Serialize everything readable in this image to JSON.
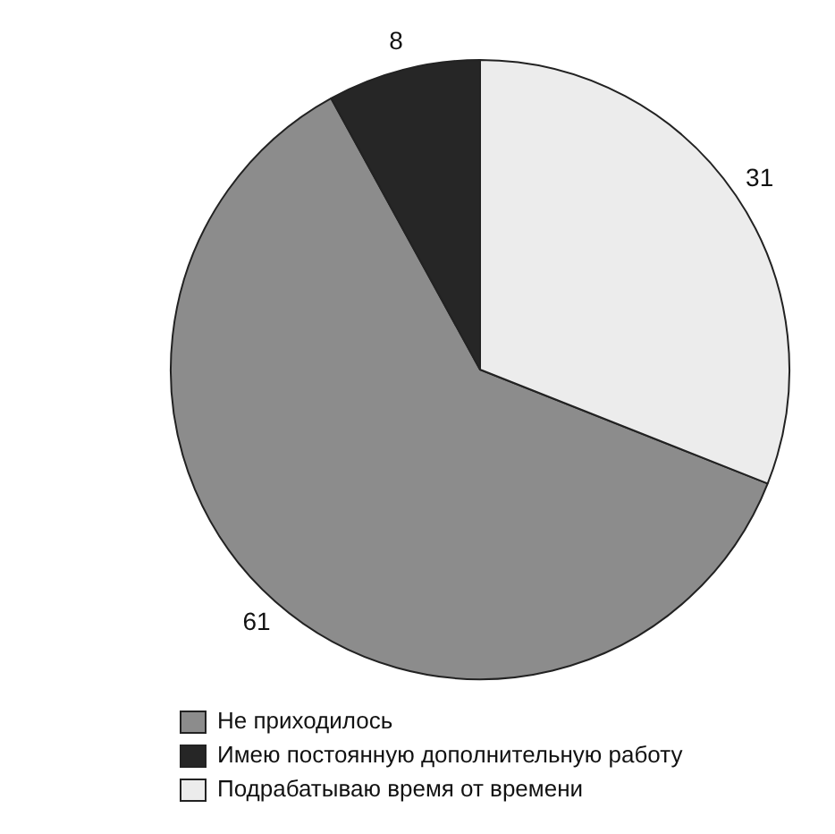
{
  "chart_data": {
    "type": "pie",
    "categories": [
      "Не приходилось",
      "Имею постоянную дополнительную работу",
      "Подрабатываю время от времени"
    ],
    "values": [
      61,
      8,
      31
    ],
    "colors": [
      "#8c8c8c",
      "#262626",
      "#ececec"
    ],
    "data_labels": true,
    "legend": "bottom left"
  }
}
